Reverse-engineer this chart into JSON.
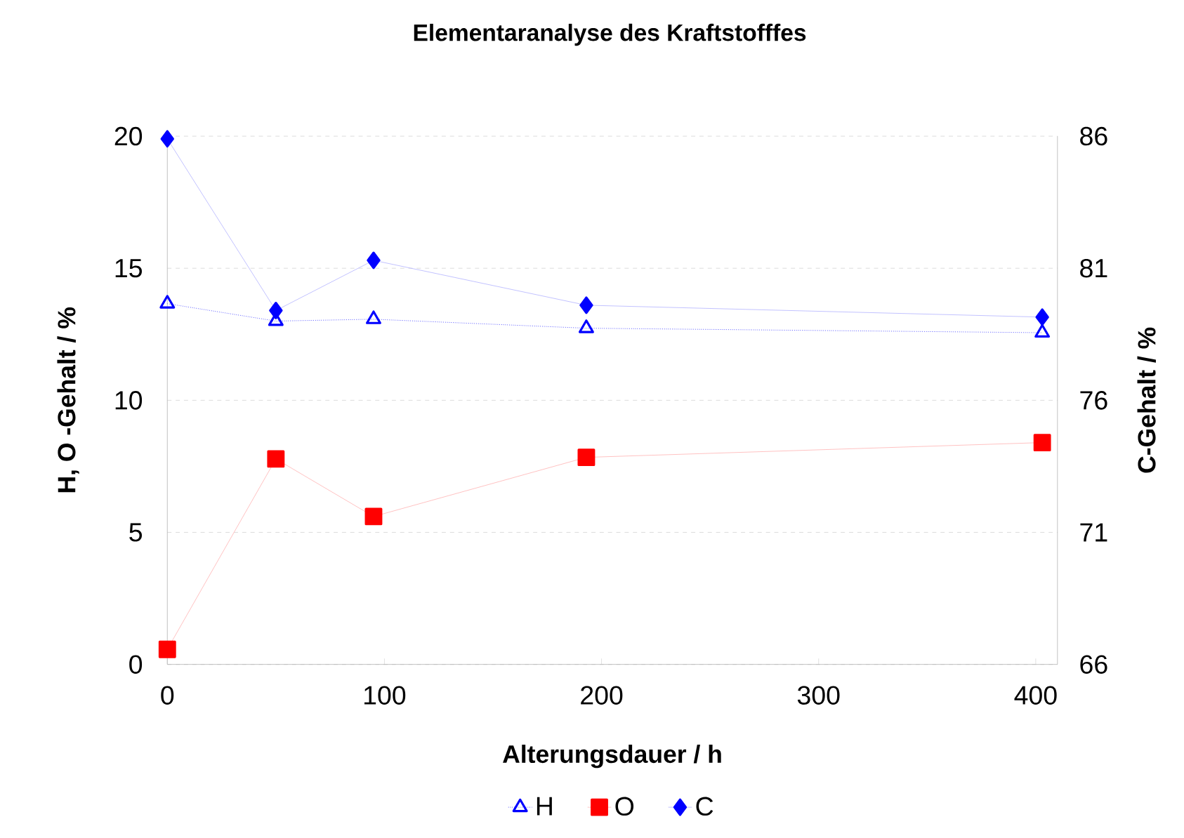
{
  "chart_data": {
    "type": "line",
    "title": "Elementaranalyse des Kraftstofffes",
    "xlabel": "Alterungsdauer  / h",
    "ylabel": "H, O -Gehalt  / %",
    "y2label": "C-Gehalt / %",
    "x": [
      0,
      50,
      95,
      193,
      403
    ],
    "series": [
      {
        "name": "H",
        "color": "#0000ff",
        "marker": "triangle",
        "line_style": "dotted",
        "values": [
          13.66,
          13.0,
          13.07,
          12.73,
          12.56
        ]
      },
      {
        "name": "O",
        "color": "#ff0000",
        "marker": "square",
        "line_style": "solid",
        "values": [
          0.57,
          7.78,
          5.6,
          7.84,
          8.4
        ]
      },
      {
        "name": "C",
        "color": "#0000ff",
        "marker": "diamond",
        "line_style": "solid",
        "axis": "y2",
        "values": [
          85.9,
          79.4,
          81.3,
          79.6,
          79.15
        ]
      }
    ],
    "xlim": [
      0,
      410
    ],
    "xticks": [
      0,
      100,
      200,
      300,
      400
    ],
    "ylim": [
      0,
      20
    ],
    "yticks": [
      0,
      5,
      10,
      15,
      20
    ],
    "y2lim": [
      66,
      86
    ],
    "y2ticks": [
      66,
      71,
      76,
      81,
      86
    ],
    "grid": "y",
    "legend": "bottom"
  }
}
